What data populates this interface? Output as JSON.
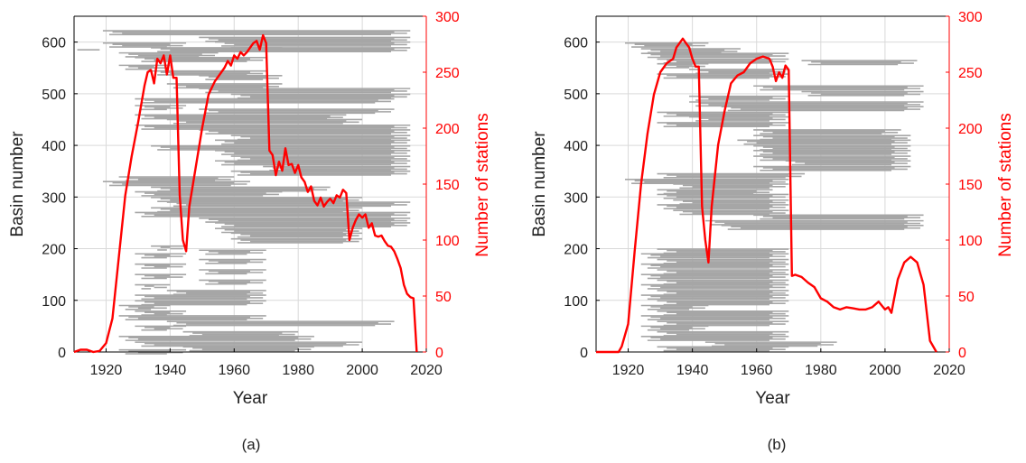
{
  "figure": {
    "colors": {
      "bars": "#a6a6a6",
      "line": "#ff0000",
      "axis": "#000000",
      "grid": "#d9d9d9"
    }
  },
  "chart_data": [
    {
      "type": "line",
      "panel_label": "(a)",
      "xlabel": "Year",
      "ylabel_left": "Basin number",
      "ylabel_right": "Number of stations",
      "xlim": [
        1910,
        2020
      ],
      "ylim_left": [
        0,
        650
      ],
      "ylim_right": [
        0,
        300
      ],
      "x_ticks": [
        1920,
        1940,
        1960,
        1980,
        2000,
        2020
      ],
      "y_left_ticks": [
        0,
        100,
        200,
        300,
        400,
        500,
        600
      ],
      "y_right_ticks": [
        0,
        50,
        100,
        150,
        200,
        250,
        300
      ],
      "grid": true,
      "series": [
        {
          "axis": "right",
          "color": "#ff0000",
          "x": [
            1910,
            1912,
            1914,
            1916,
            1918,
            1920,
            1922,
            1924,
            1926,
            1928,
            1930,
            1932,
            1933,
            1934,
            1935,
            1936,
            1937,
            1938,
            1939,
            1940,
            1941,
            1942,
            1943,
            1944,
            1945,
            1946,
            1948,
            1950,
            1952,
            1954,
            1956,
            1957,
            1958,
            1959,
            1960,
            1961,
            1962,
            1963,
            1964,
            1965,
            1966,
            1967,
            1968,
            1969,
            1970,
            1971,
            1972,
            1973,
            1974,
            1975,
            1976,
            1977,
            1978,
            1979,
            1980,
            1981,
            1982,
            1983,
            1984,
            1985,
            1986,
            1987,
            1988,
            1989,
            1990,
            1991,
            1992,
            1993,
            1994,
            1995,
            1996,
            1997,
            1998,
            1999,
            2000,
            2001,
            2002,
            2003,
            2004,
            2005,
            2006,
            2007,
            2008,
            2009,
            2010,
            2011,
            2012,
            2013,
            2014,
            2015,
            2016,
            2017
          ],
          "y": [
            0,
            2,
            2,
            0,
            1,
            8,
            30,
            85,
            140,
            175,
            205,
            238,
            250,
            252,
            240,
            262,
            258,
            265,
            248,
            265,
            245,
            245,
            140,
            100,
            90,
            130,
            165,
            200,
            230,
            242,
            250,
            254,
            260,
            256,
            265,
            262,
            268,
            265,
            268,
            272,
            276,
            278,
            270,
            283,
            276,
            180,
            176,
            158,
            170,
            162,
            182,
            167,
            168,
            160,
            167,
            156,
            152,
            143,
            148,
            135,
            131,
            138,
            130,
            134,
            137,
            133,
            140,
            138,
            145,
            142,
            100,
            111,
            118,
            123,
            120,
            123,
            111,
            115,
            104,
            103,
            104,
            99,
            95,
            94,
            90,
            83,
            75,
            60,
            52,
            49,
            48,
            0
          ]
        }
      ]
    },
    {
      "type": "line",
      "panel_label": "(b)",
      "xlabel": "Year",
      "ylabel_left": "Basin number",
      "ylabel_right": "Number of stations",
      "xlim": [
        1910,
        2020
      ],
      "ylim_left": [
        0,
        650
      ],
      "ylim_right": [
        0,
        300
      ],
      "x_ticks": [
        1920,
        1940,
        1960,
        1980,
        2000,
        2020
      ],
      "y_left_ticks": [
        0,
        100,
        200,
        300,
        400,
        500,
        600
      ],
      "y_right_ticks": [
        0,
        50,
        100,
        150,
        200,
        250,
        300
      ],
      "grid": true,
      "series": [
        {
          "axis": "right",
          "color": "#ff0000",
          "x": [
            1910,
            1914,
            1917,
            1918,
            1920,
            1922,
            1924,
            1926,
            1928,
            1930,
            1932,
            1934,
            1935,
            1936,
            1937,
            1938,
            1939,
            1940,
            1941,
            1942,
            1943,
            1944,
            1945,
            1946,
            1948,
            1950,
            1952,
            1954,
            1956,
            1958,
            1960,
            1962,
            1964,
            1965,
            1966,
            1967,
            1968,
            1969,
            1970,
            1971,
            1972,
            1974,
            1976,
            1978,
            1980,
            1982,
            1984,
            1986,
            1988,
            1990,
            1992,
            1994,
            1996,
            1998,
            2000,
            2001,
            2002,
            2004,
            2006,
            2008,
            2010,
            2011,
            2012,
            2014,
            2016
          ],
          "y": [
            0,
            0,
            0,
            5,
            25,
            90,
            150,
            195,
            230,
            250,
            258,
            262,
            272,
            276,
            280,
            276,
            272,
            262,
            255,
            255,
            130,
            100,
            80,
            130,
            185,
            215,
            240,
            247,
            250,
            258,
            262,
            264,
            262,
            255,
            242,
            250,
            245,
            256,
            252,
            68,
            69,
            67,
            62,
            58,
            48,
            45,
            40,
            38,
            40,
            39,
            38,
            38,
            40,
            45,
            38,
            40,
            35,
            65,
            80,
            85,
            80,
            70,
            60,
            10,
            0
          ]
        }
      ]
    }
  ],
  "bar_records": {
    "a": [
      [
        1912,
        1918,
        585,
        "a"
      ],
      [
        1920,
        1945,
        598,
        "a"
      ],
      [
        1925,
        1955,
        580,
        "b"
      ],
      [
        1930,
        1970,
        570,
        "a"
      ],
      [
        1935,
        1975,
        590,
        "b"
      ],
      [
        1920,
        2015,
        622,
        "a"
      ],
      [
        1950,
        2015,
        610,
        "b"
      ],
      [
        1955,
        2015,
        600,
        "a"
      ],
      [
        1960,
        2015,
        590,
        "b"
      ],
      [
        1925,
        1940,
        555,
        "a"
      ],
      [
        1935,
        1970,
        545,
        "b"
      ],
      [
        1950,
        1975,
        535,
        "a"
      ],
      [
        1940,
        1975,
        520,
        "b"
      ],
      [
        1950,
        2015,
        510,
        "a"
      ],
      [
        1960,
        2015,
        500,
        "b"
      ],
      [
        1930,
        2010,
        490,
        "a"
      ],
      [
        1930,
        1945,
        478,
        "b"
      ],
      [
        1950,
        2010,
        470,
        "a"
      ],
      [
        1930,
        1995,
        460,
        "b"
      ],
      [
        1940,
        2000,
        450,
        "a"
      ],
      [
        1930,
        2015,
        440,
        "b"
      ],
      [
        1950,
        2015,
        430,
        "a"
      ],
      [
        1960,
        2015,
        420,
        "b"
      ],
      [
        1955,
        2015,
        410,
        "a"
      ],
      [
        1935,
        2015,
        400,
        "b"
      ],
      [
        1955,
        2015,
        390,
        "a"
      ],
      [
        1960,
        2015,
        380,
        "b"
      ],
      [
        1955,
        2015,
        370,
        "a"
      ],
      [
        1970,
        2015,
        360,
        "b"
      ],
      [
        1960,
        2015,
        350,
        "a"
      ],
      [
        1925,
        1960,
        340,
        "b"
      ],
      [
        1920,
        1965,
        330,
        "a"
      ],
      [
        1935,
        1990,
        320,
        "b"
      ],
      [
        1930,
        1975,
        310,
        "a"
      ],
      [
        1935,
        2000,
        300,
        "b"
      ],
      [
        1940,
        2015,
        290,
        "a"
      ],
      [
        1935,
        2000,
        280,
        "b"
      ],
      [
        1930,
        2015,
        270,
        "a"
      ],
      [
        1950,
        2015,
        260,
        "b"
      ],
      [
        1955,
        2015,
        250,
        "a"
      ],
      [
        1955,
        2000,
        240,
        "b"
      ],
      [
        1960,
        2000,
        230,
        "a"
      ],
      [
        1960,
        2000,
        220,
        "b"
      ],
      [
        1935,
        1945,
        205,
        "a"
      ],
      [
        1950,
        1970,
        198,
        "b"
      ],
      [
        1930,
        1945,
        190,
        "a"
      ],
      [
        1950,
        1970,
        180,
        "b"
      ],
      [
        1930,
        1945,
        170,
        "a"
      ],
      [
        1950,
        1970,
        160,
        "b"
      ],
      [
        1930,
        1945,
        150,
        "a"
      ],
      [
        1950,
        1970,
        140,
        "b"
      ],
      [
        1930,
        1940,
        130,
        "a"
      ],
      [
        1940,
        1970,
        120,
        "b"
      ],
      [
        1930,
        1970,
        110,
        "a"
      ],
      [
        1930,
        1970,
        100,
        "b"
      ],
      [
        1925,
        1940,
        90,
        "a"
      ],
      [
        1930,
        1945,
        80,
        "b"
      ],
      [
        1925,
        1970,
        70,
        "a"
      ],
      [
        1940,
        2010,
        60,
        "b"
      ],
      [
        1930,
        1945,
        50,
        "a"
      ],
      [
        1945,
        1980,
        40,
        "b"
      ],
      [
        1925,
        1985,
        30,
        "a"
      ],
      [
        1930,
        2000,
        20,
        "b"
      ],
      [
        1945,
        1985,
        10,
        "a"
      ],
      [
        1925,
        1945,
        5,
        "b"
      ]
    ],
    "b": [
      [
        1920,
        1945,
        598,
        "a"
      ],
      [
        1925,
        1955,
        588,
        "b"
      ],
      [
        1925,
        1970,
        578,
        "a"
      ],
      [
        1930,
        1970,
        568,
        "b"
      ],
      [
        1930,
        1945,
        558,
        "a"
      ],
      [
        1940,
        1970,
        548,
        "b"
      ],
      [
        1930,
        1970,
        538,
        "a"
      ],
      [
        1975,
        2010,
        565,
        "b"
      ],
      [
        1960,
        2012,
        515,
        "a"
      ],
      [
        1975,
        2012,
        505,
        "b"
      ],
      [
        1940,
        1970,
        495,
        "a"
      ],
      [
        1940,
        2012,
        485,
        "b"
      ],
      [
        1950,
        2012,
        475,
        "a"
      ],
      [
        1930,
        1970,
        465,
        "b"
      ],
      [
        1940,
        1970,
        455,
        "a"
      ],
      [
        1930,
        1970,
        445,
        "b"
      ],
      [
        1960,
        2005,
        430,
        "a"
      ],
      [
        1960,
        2008,
        420,
        "b"
      ],
      [
        1955,
        2008,
        410,
        "a"
      ],
      [
        1960,
        2008,
        400,
        "b"
      ],
      [
        1960,
        2008,
        390,
        "a"
      ],
      [
        1960,
        2008,
        380,
        "b"
      ],
      [
        1970,
        2008,
        370,
        "a"
      ],
      [
        1960,
        2008,
        360,
        "b"
      ],
      [
        1930,
        1975,
        345,
        "a"
      ],
      [
        1920,
        1970,
        335,
        "b"
      ],
      [
        1935,
        1970,
        325,
        "a"
      ],
      [
        1930,
        1965,
        315,
        "b"
      ],
      [
        1930,
        1970,
        305,
        "a"
      ],
      [
        1935,
        1970,
        295,
        "b"
      ],
      [
        1930,
        1970,
        285,
        "a"
      ],
      [
        1935,
        1970,
        275,
        "b"
      ],
      [
        1960,
        2012,
        265,
        "a"
      ],
      [
        1945,
        2012,
        255,
        "b"
      ],
      [
        1950,
        2012,
        245,
        "a"
      ],
      [
        1930,
        1970,
        200,
        "b"
      ],
      [
        1925,
        1970,
        190,
        "a"
      ],
      [
        1930,
        1970,
        180,
        "b"
      ],
      [
        1925,
        1970,
        170,
        "a"
      ],
      [
        1930,
        1970,
        160,
        "b"
      ],
      [
        1925,
        1970,
        150,
        "a"
      ],
      [
        1930,
        1970,
        140,
        "b"
      ],
      [
        1925,
        1970,
        130,
        "a"
      ],
      [
        1930,
        1970,
        120,
        "b"
      ],
      [
        1925,
        1970,
        110,
        "a"
      ],
      [
        1930,
        1970,
        100,
        "b"
      ],
      [
        1925,
        1945,
        90,
        "a"
      ],
      [
        1930,
        1970,
        80,
        "b"
      ],
      [
        1925,
        1970,
        70,
        "a"
      ],
      [
        1930,
        1970,
        60,
        "b"
      ],
      [
        1925,
        1945,
        50,
        "a"
      ],
      [
        1930,
        1970,
        40,
        "b"
      ],
      [
        1925,
        1970,
        30,
        "a"
      ],
      [
        1945,
        1985,
        20,
        "b"
      ],
      [
        1930,
        1970,
        10,
        "a"
      ]
    ]
  }
}
